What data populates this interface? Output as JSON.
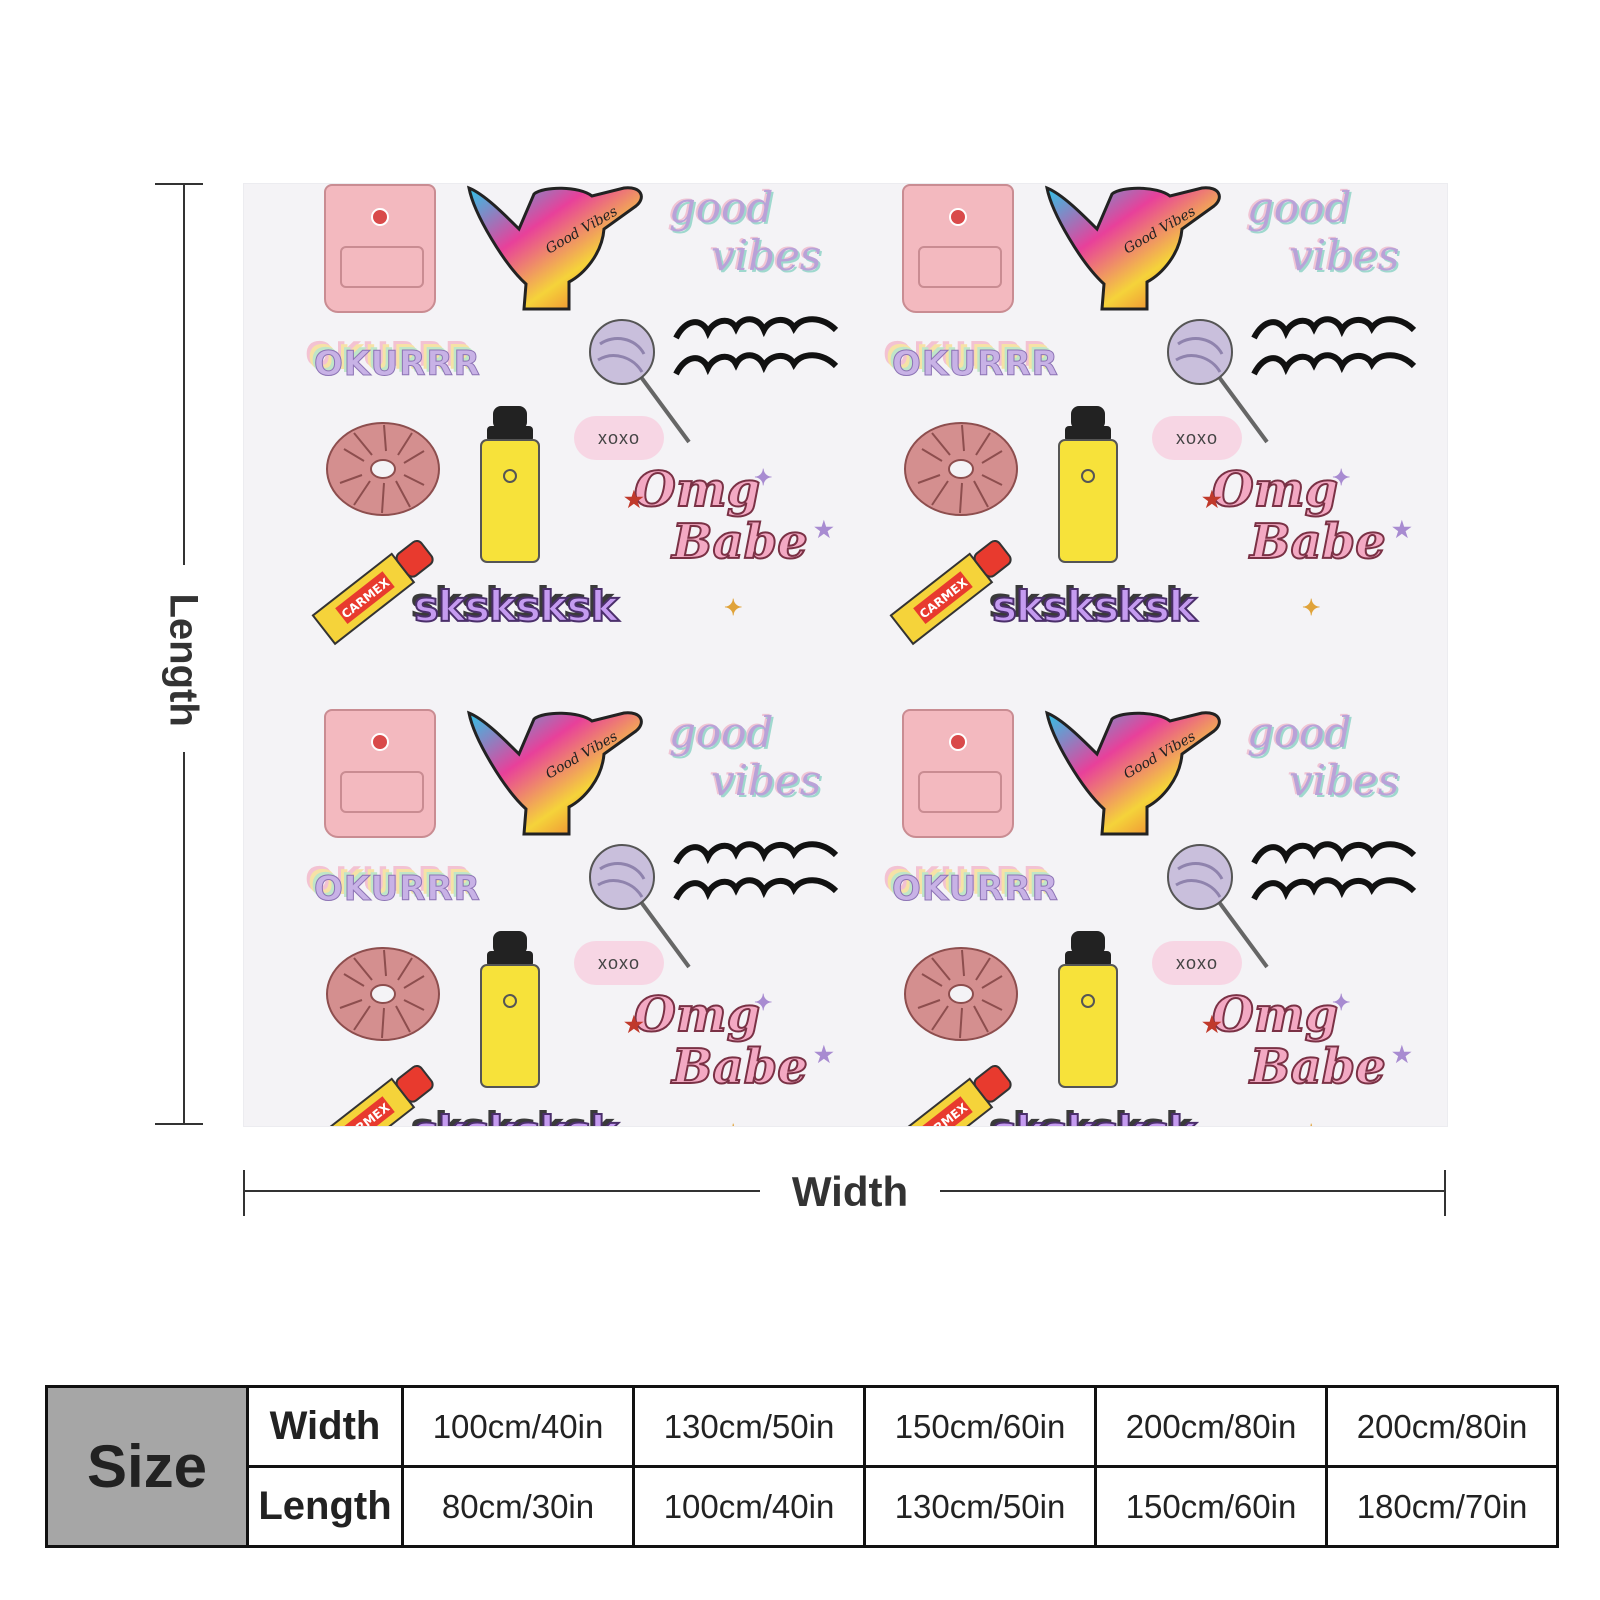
{
  "product": {
    "sticker_text": {
      "good": "good",
      "vibes": "vibes",
      "okurrr": "OKURRR",
      "xoxo": "xoxo",
      "omg": "Omg",
      "babe": "Babe",
      "sksksksk": "sksksksk",
      "carmex": "CARMEX",
      "hand_text": "Good Vibes"
    }
  },
  "dimensions": {
    "length_label": "Length",
    "width_label": "Width"
  },
  "size_table": {
    "title": "Size",
    "row_labels": [
      "Width",
      "Length"
    ],
    "widths": [
      "100cm/40in",
      "130cm/50in",
      "150cm/60in",
      "200cm/80in",
      "200cm/80in"
    ],
    "lengths": [
      "80cm/30in",
      "100cm/40in",
      "130cm/50in",
      "150cm/60in",
      "180cm/70in"
    ]
  },
  "colors": {
    "table_header_bg": "#a6a6a6",
    "sks_purple": "#c59bf0",
    "omg_pink": "#f3a9c3",
    "bottle_yellow": "#f7e23a"
  }
}
